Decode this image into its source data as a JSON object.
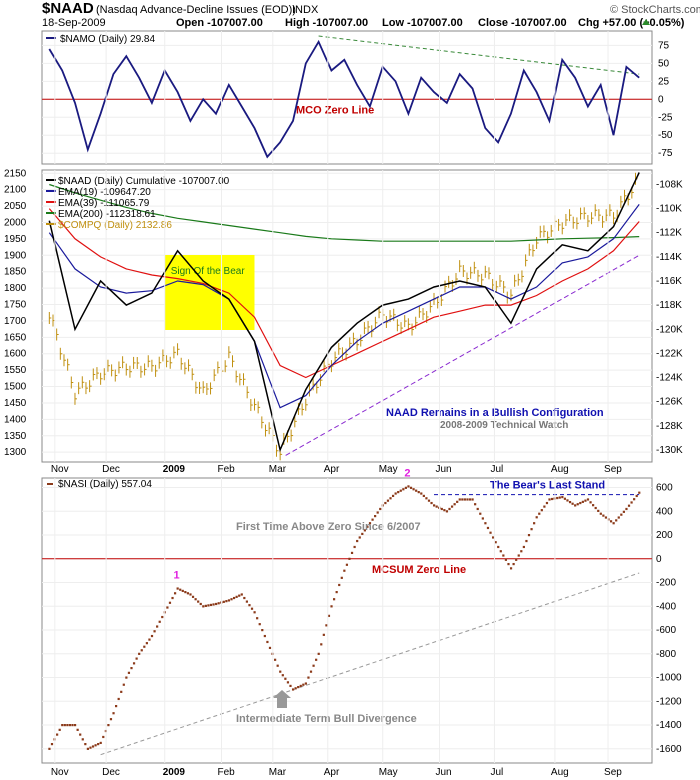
{
  "header": {
    "symbol": "$NAAD",
    "description": "(Nasdaq Advance-Decline Issues (EOD))",
    "exchange": "INDX",
    "date": "18-Sep-2009",
    "open": "Open -107007.00",
    "high": "High -107007.00",
    "low": "Low -107007.00",
    "close": "Close -107007.00",
    "chg": "Chg +57.00 (+0.05%)",
    "brand": "© StockCharts.com"
  },
  "x_axis_labels": [
    "Nov",
    "Dec",
    "2009",
    "Feb",
    "Mar",
    "Apr",
    "May",
    "Jun",
    "Jul",
    "Aug",
    "Sep"
  ],
  "colors": {
    "namo": "#1a1a80",
    "naad": "#000000",
    "ema19": "#1a1a9c",
    "ema39": "#e01010",
    "ema200": "#1a7a1a",
    "compq": "#c09010",
    "nasi": "#8b3a1a",
    "zero_line": "#c00000",
    "annotation_blue": "#1010b0",
    "annotation_red": "#c00000",
    "annotation_magenta": "#e020e0",
    "highlight": "#ffff00"
  },
  "chart_data": [
    {
      "panel": "namo",
      "type": "line",
      "legend": "$NAMO (Daily) 29.84",
      "y_ticks": [
        75,
        50,
        25,
        0,
        -25,
        -50,
        -75
      ],
      "ylim": [
        -90,
        95
      ],
      "x": [
        "2008-10-31",
        "2008-11-07",
        "2008-11-14",
        "2008-11-21",
        "2008-11-28",
        "2008-12-05",
        "2008-12-12",
        "2008-12-19",
        "2008-12-26",
        "2009-01-02",
        "2009-01-09",
        "2009-01-16",
        "2009-01-23",
        "2009-01-30",
        "2009-02-06",
        "2009-02-13",
        "2009-02-20",
        "2009-02-27",
        "2009-03-06",
        "2009-03-13",
        "2009-03-20",
        "2009-03-27",
        "2009-04-03",
        "2009-04-10",
        "2009-04-17",
        "2009-04-24",
        "2009-05-01",
        "2009-05-08",
        "2009-05-15",
        "2009-05-22",
        "2009-05-29",
        "2009-06-05",
        "2009-06-12",
        "2009-06-19",
        "2009-06-26",
        "2009-07-03",
        "2009-07-10",
        "2009-07-17",
        "2009-07-24",
        "2009-07-31",
        "2009-08-07",
        "2009-08-14",
        "2009-08-21",
        "2009-08-28",
        "2009-09-04",
        "2009-09-11",
        "2009-09-18"
      ],
      "values": [
        70,
        40,
        -5,
        -70,
        -20,
        35,
        60,
        30,
        -5,
        40,
        10,
        -30,
        0,
        -20,
        20,
        -10,
        -40,
        -80,
        -60,
        -30,
        50,
        80,
        40,
        55,
        20,
        -10,
        45,
        25,
        -20,
        30,
        10,
        -5,
        35,
        15,
        -40,
        -60,
        -20,
        40,
        10,
        -30,
        55,
        30,
        -10,
        20,
        -50,
        45,
        30
      ],
      "hlines": [
        {
          "y": 0,
          "label": "MCO Zero Line"
        }
      ],
      "trendline": {
        "from": [
          "2009-03-27",
          88
        ],
        "to": [
          "2009-09-18",
          35
        ]
      }
    },
    {
      "panel": "naad",
      "type": "line",
      "legend": [
        "$NAAD (Daily) Cumulative -107007.00",
        "EMA(19) -109647.20",
        "EMA(39) -111065.79",
        "EMA(200) -112318.61",
        "$COMPQ (Daily) 2132.86"
      ],
      "left_axis_ticks": [
        2150,
        2100,
        2050,
        2000,
        1950,
        1900,
        1850,
        1800,
        1750,
        1700,
        1650,
        1600,
        1550,
        1500,
        1450,
        1400,
        1350,
        1300
      ],
      "right_axis_ticks": [
        "-108K",
        "-110K",
        "-112K",
        "-114K",
        "-116K",
        "-118K",
        "-120K",
        "-122K",
        "-124K",
        "-126K",
        "-128K",
        "-130K"
      ],
      "right_axis_values": [
        -108000,
        -110000,
        -112000,
        -114000,
        -116000,
        -118000,
        -120000,
        -122000,
        -124000,
        -126000,
        -128000,
        -130000
      ],
      "ylim_left": [
        1270,
        2160
      ],
      "x": [
        "2008-10-31",
        "2008-11-14",
        "2008-11-28",
        "2008-12-12",
        "2008-12-26",
        "2009-01-09",
        "2009-01-23",
        "2009-02-06",
        "2009-02-20",
        "2009-03-06",
        "2009-03-20",
        "2009-04-03",
        "2009-04-17",
        "2009-05-01",
        "2009-05-15",
        "2009-05-29",
        "2009-06-12",
        "2009-06-26",
        "2009-07-10",
        "2009-07-24",
        "2009-08-07",
        "2009-08-21",
        "2009-09-04",
        "2009-09-18"
      ],
      "series": [
        {
          "name": "$NAAD (Daily) Cumulative",
          "axis": "right",
          "values": [
            -111000,
            -120000,
            -116000,
            -118000,
            -117000,
            -113500,
            -116000,
            -117500,
            -121000,
            -130000,
            -125000,
            -121500,
            -119500,
            -118000,
            -117500,
            -116500,
            -116000,
            -116500,
            -119500,
            -115000,
            -113000,
            -113500,
            -111500,
            -107007
          ]
        },
        {
          "name": "EMA(19)",
          "axis": "right",
          "values": [
            -112000,
            -115000,
            -116500,
            -117000,
            -116800,
            -116000,
            -116300,
            -117500,
            -121000,
            -126500,
            -125500,
            -123000,
            -121000,
            -119500,
            -118500,
            -117500,
            -116500,
            -116500,
            -117500,
            -116500,
            -114500,
            -114000,
            -112500,
            -109647.2
          ]
        },
        {
          "name": "EMA(39)",
          "axis": "right",
          "values": [
            -110000,
            -112500,
            -114000,
            -115000,
            -115500,
            -115800,
            -116200,
            -117000,
            -119000,
            -123000,
            -124000,
            -123000,
            -122000,
            -121000,
            -120000,
            -119000,
            -118500,
            -118000,
            -118000,
            -117200,
            -116000,
            -115000,
            -113500,
            -111065.79
          ]
        },
        {
          "name": "EMA(200)",
          "axis": "right",
          "values": [
            -108000,
            -108700,
            -109300,
            -109900,
            -110400,
            -110800,
            -111100,
            -111400,
            -111700,
            -112000,
            -112300,
            -112500,
            -112600,
            -112700,
            -112700,
            -112700,
            -112700,
            -112700,
            -112700,
            -112600,
            -112500,
            -112450,
            -112400,
            -112318.61
          ]
        },
        {
          "name": "$COMPQ (Daily)",
          "axis": "left",
          "type": "hlc",
          "values": [
            1720,
            1480,
            1540,
            1560,
            1560,
            1600,
            1480,
            1590,
            1440,
            1300,
            1460,
            1580,
            1640,
            1720,
            1680,
            1750,
            1850,
            1840,
            1780,
            1950,
            2000,
            2020,
            2020,
            2132.86
          ]
        }
      ],
      "trendline": {
        "from": [
          "2009-03-09",
          1290
        ],
        "to": [
          "2009-09-18",
          1900
        ]
      },
      "highlight": {
        "label": "Sign Of the Bear",
        "x_from": "2009-01-02",
        "x_to": "2009-02-20"
      },
      "annotations": [
        "NAAD Remains in a Bullish Configuration",
        "2008-2009 Technical Watch"
      ]
    },
    {
      "panel": "nasi",
      "type": "scatter",
      "legend": "$NASI (Daily) 557.04",
      "y_ticks": [
        600,
        400,
        200,
        0,
        -200,
        -400,
        -600,
        -800,
        -1000,
        -1200,
        -1400,
        -1600
      ],
      "ylim": [
        -1720,
        680
      ],
      "x": [
        "2008-10-31",
        "2008-11-07",
        "2008-11-14",
        "2008-11-21",
        "2008-11-28",
        "2008-12-05",
        "2008-12-12",
        "2008-12-19",
        "2008-12-26",
        "2009-01-02",
        "2009-01-09",
        "2009-01-16",
        "2009-01-23",
        "2009-01-30",
        "2009-02-06",
        "2009-02-13",
        "2009-02-20",
        "2009-02-27",
        "2009-03-06",
        "2009-03-13",
        "2009-03-20",
        "2009-03-27",
        "2009-04-03",
        "2009-04-10",
        "2009-04-17",
        "2009-04-24",
        "2009-05-01",
        "2009-05-08",
        "2009-05-15",
        "2009-05-22",
        "2009-05-29",
        "2009-06-05",
        "2009-06-12",
        "2009-06-19",
        "2009-06-26",
        "2009-07-03",
        "2009-07-10",
        "2009-07-17",
        "2009-07-24",
        "2009-07-31",
        "2009-08-07",
        "2009-08-14",
        "2009-08-21",
        "2009-08-28",
        "2009-09-04",
        "2009-09-11",
        "2009-09-18"
      ],
      "values": [
        -1600,
        -1400,
        -1400,
        -1600,
        -1550,
        -1300,
        -1000,
        -800,
        -650,
        -450,
        -250,
        -300,
        -400,
        -380,
        -350,
        -300,
        -450,
        -700,
        -950,
        -1100,
        -1050,
        -800,
        -400,
        -100,
        150,
        300,
        450,
        550,
        610,
        550,
        450,
        400,
        500,
        500,
        300,
        100,
        -80,
        100,
        350,
        500,
        520,
        450,
        500,
        380,
        300,
        420,
        557.04
      ],
      "hlines": [
        {
          "y": 0,
          "label": "MCSUM Zero Line"
        }
      ],
      "resistance": {
        "y": 540,
        "label": "The Bear's Last Stand",
        "x_from": "2009-05-29",
        "x_to": "2009-09-18"
      },
      "trendline": {
        "from": [
          "2008-11-28",
          -1650
        ],
        "to": [
          "2009-09-18",
          -120
        ]
      },
      "annotations": [
        "First Time Above Zero Since 6/2007",
        "Intermediate Term Bull Divergence"
      ],
      "markers": [
        {
          "label": "1",
          "x": "2009-01-09",
          "y": -250
        },
        {
          "label": "2",
          "x": "2009-05-15",
          "y": 610
        }
      ]
    }
  ]
}
